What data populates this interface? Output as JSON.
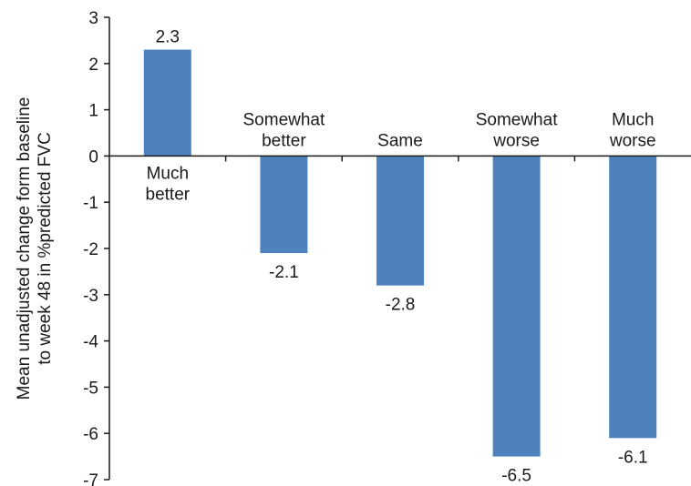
{
  "chart_data": {
    "type": "bar",
    "categories": [
      [
        "Much",
        "better"
      ],
      [
        "Somewhat",
        "better"
      ],
      [
        "Same"
      ],
      [
        "Somewhat",
        "worse"
      ],
      [
        "Much",
        "worse"
      ]
    ],
    "values": [
      2.3,
      -2.1,
      -2.8,
      -6.5,
      -6.1
    ],
    "value_labels": [
      "2.3",
      "-2.1",
      "-2.8",
      "-6.5",
      "-6.1"
    ],
    "ylabel": [
      "Mean unadjusted change form baseline",
      "to week 48 in %predicted FVC"
    ],
    "xlabel": "",
    "ylim": [
      -7,
      3
    ],
    "yticks": [
      3,
      2,
      1,
      0,
      -1,
      -2,
      -3,
      -4,
      -5,
      -6,
      -7
    ],
    "ytick_labels": [
      "3",
      "2",
      "1",
      "0",
      "-1",
      "-2",
      "-3",
      "-4",
      "-5",
      "-6",
      "-7"
    ],
    "bar_color": "#4f81bd",
    "axis_color": "#1a1a1a",
    "grid": false,
    "legend": "none"
  }
}
